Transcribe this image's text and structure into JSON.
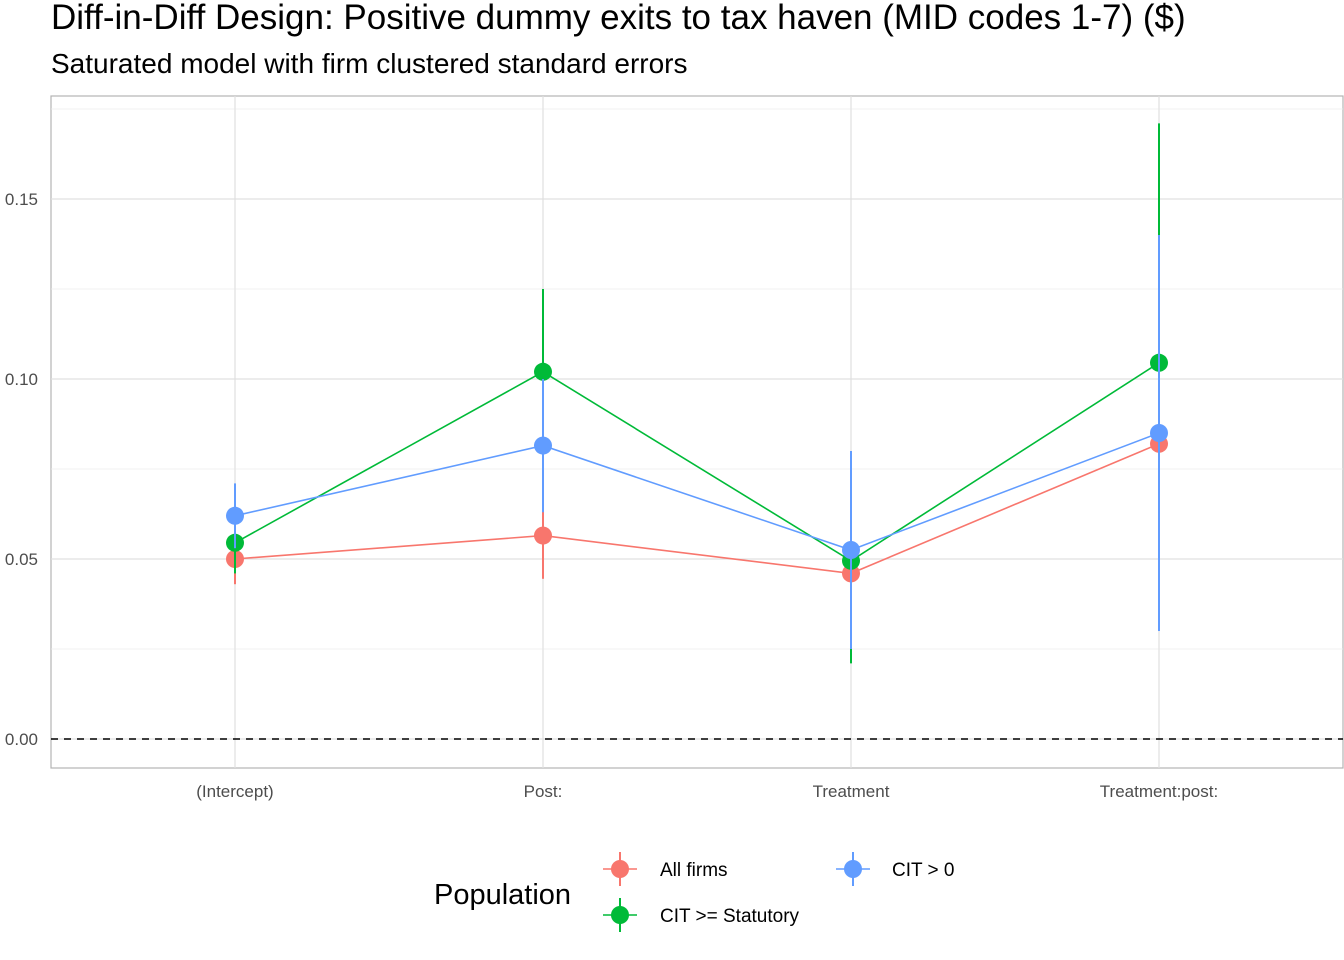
{
  "chart_data": {
    "type": "scatter",
    "title": "Diff-in-Diff Design: Positive dummy exits to tax haven (MID codes 1-7)  ($)",
    "subtitle": "Saturated model with firm clustered standard errors",
    "xlabel": "",
    "ylabel": "",
    "categories": [
      "(Intercept)",
      "Post:",
      "Treatment",
      "Treatment:post:"
    ],
    "y_ticks": [
      0.0,
      0.05,
      0.1,
      0.15
    ],
    "y_tick_labels": [
      "0.00",
      "0.05",
      "0.10",
      "0.15"
    ],
    "ylim": [
      -0.008,
      0.178
    ],
    "grid": true,
    "reference_line": 0,
    "legend": {
      "title": "Population",
      "placement": "bottom"
    },
    "series": [
      {
        "name": "All firms",
        "color": "#F8766D",
        "values": [
          0.05,
          0.0565,
          0.046,
          0.082
        ],
        "lower": [
          0.043,
          0.0445,
          0.04,
          0.075
        ],
        "upper": [
          0.057,
          0.0645,
          0.052,
          0.089
        ]
      },
      {
        "name": "CIT >= Statutory",
        "color": "#00BA38",
        "values": [
          0.0545,
          0.102,
          0.0495,
          0.1045
        ],
        "lower": [
          0.046,
          0.079,
          0.021,
          0.039
        ],
        "upper": [
          0.063,
          0.125,
          0.078,
          0.171
        ]
      },
      {
        "name": "CIT > 0",
        "color": "#619CFF",
        "values": [
          0.062,
          0.0815,
          0.0525,
          0.085
        ],
        "lower": [
          0.053,
          0.063,
          0.025,
          0.03
        ],
        "upper": [
          0.071,
          0.1,
          0.08,
          0.14
        ]
      }
    ]
  }
}
